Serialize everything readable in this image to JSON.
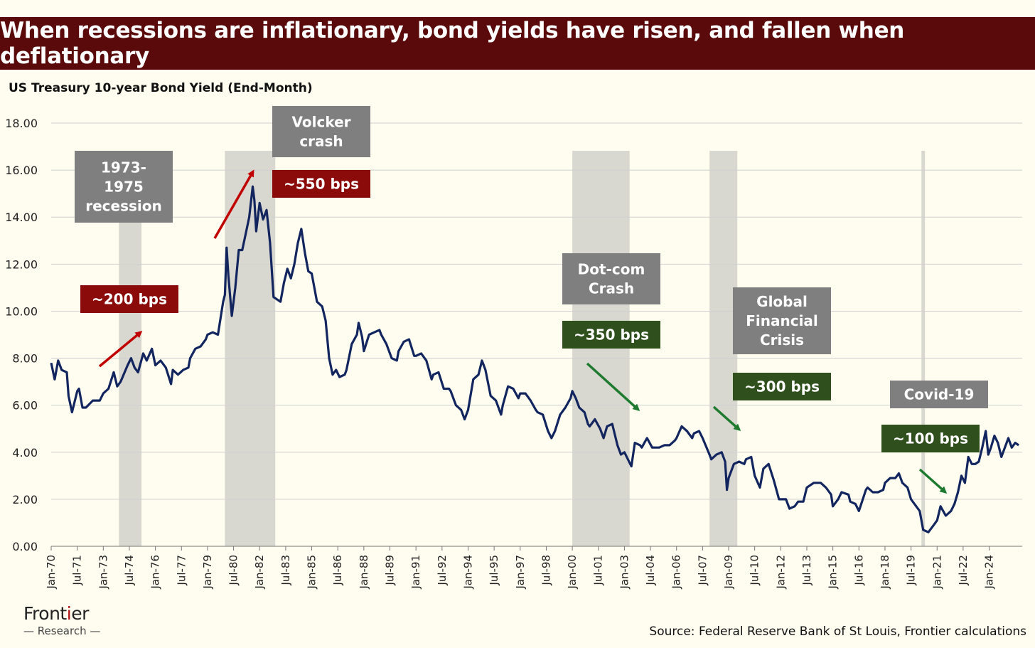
{
  "title": "When recessions are inflationary, bond yields have risen, and fallen when deflationary",
  "subtitle": "US Treasury 10-year Bond Yield (End-Month)",
  "source": "Source: Federal Reserve Bank of St Louis, Frontier calculations",
  "logo": {
    "main_pre": "Front",
    "main_dot": "i",
    "main_post": "er",
    "sub": "Research"
  },
  "colors": {
    "line": "#13255e",
    "recession": "#d9d8d0",
    "grey_box": "#7f7f7f",
    "red_box": "#8b0a0a",
    "green_box": "#2f4f1c",
    "red_arrow": "#c00000",
    "green_arrow": "#1e7a2e"
  },
  "chart_data": {
    "type": "line",
    "title": "US Treasury 10-year Bond Yield (End-Month)",
    "xlabel": "",
    "ylabel": "",
    "ylim": [
      0,
      18
    ],
    "yticks": [
      "0.00",
      "2.00",
      "4.00",
      "6.00",
      "8.00",
      "10.00",
      "12.00",
      "14.00",
      "16.00",
      "18.00"
    ],
    "xlim": [
      1970.0,
      2025.9
    ],
    "xticks": [
      "Jan-70",
      "Jul-71",
      "Jan-73",
      "Jul-74",
      "Jan-76",
      "Jul-77",
      "Jan-79",
      "Jul-80",
      "Jan-82",
      "Jul-83",
      "Jan-85",
      "Jul-86",
      "Jan-88",
      "Jul-89",
      "Jan-91",
      "Jul-92",
      "Jan-94",
      "Jul-95",
      "Jan-97",
      "Jul-98",
      "Jan-00",
      "Jul-01",
      "Jan-03",
      "Jul-04",
      "Jan-06",
      "Jul-07",
      "Jan-09",
      "Jul-10",
      "Jan-12",
      "Jul-13",
      "Jan-15",
      "Jul-16",
      "Jan-18",
      "Jul-19",
      "Jan-21",
      "Jul-22",
      "Jan-24"
    ],
    "series": [
      {
        "name": "US Treasury 10-year Bond Yield",
        "points": [
          [
            1970.0,
            7.8
          ],
          [
            1970.2,
            7.1
          ],
          [
            1970.4,
            7.9
          ],
          [
            1970.6,
            7.5
          ],
          [
            1970.9,
            7.4
          ],
          [
            1971.0,
            6.4
          ],
          [
            1971.2,
            5.7
          ],
          [
            1971.5,
            6.6
          ],
          [
            1971.6,
            6.7
          ],
          [
            1971.8,
            5.9
          ],
          [
            1972.0,
            5.9
          ],
          [
            1972.4,
            6.2
          ],
          [
            1972.8,
            6.2
          ],
          [
            1973.0,
            6.5
          ],
          [
            1973.3,
            6.7
          ],
          [
            1973.6,
            7.4
          ],
          [
            1973.8,
            6.8
          ],
          [
            1974.0,
            7.0
          ],
          [
            1974.4,
            7.7
          ],
          [
            1974.6,
            8.0
          ],
          [
            1974.8,
            7.6
          ],
          [
            1975.0,
            7.4
          ],
          [
            1975.3,
            8.2
          ],
          [
            1975.5,
            7.9
          ],
          [
            1975.8,
            8.4
          ],
          [
            1976.0,
            7.7
          ],
          [
            1976.3,
            7.9
          ],
          [
            1976.6,
            7.6
          ],
          [
            1976.9,
            6.9
          ],
          [
            1977.0,
            7.5
          ],
          [
            1977.3,
            7.3
          ],
          [
            1977.6,
            7.5
          ],
          [
            1977.9,
            7.6
          ],
          [
            1978.0,
            8.0
          ],
          [
            1978.3,
            8.4
          ],
          [
            1978.6,
            8.5
          ],
          [
            1978.9,
            8.8
          ],
          [
            1979.0,
            9.0
          ],
          [
            1979.3,
            9.1
          ],
          [
            1979.6,
            9.0
          ],
          [
            1979.9,
            10.4
          ],
          [
            1980.0,
            10.7
          ],
          [
            1980.1,
            12.7
          ],
          [
            1980.2,
            11.5
          ],
          [
            1980.4,
            9.8
          ],
          [
            1980.6,
            11.0
          ],
          [
            1980.8,
            12.6
          ],
          [
            1981.0,
            12.6
          ],
          [
            1981.2,
            13.3
          ],
          [
            1981.4,
            14.0
          ],
          [
            1981.6,
            15.3
          ],
          [
            1981.7,
            14.7
          ],
          [
            1981.8,
            13.4
          ],
          [
            1982.0,
            14.6
          ],
          [
            1982.2,
            13.9
          ],
          [
            1982.4,
            14.3
          ],
          [
            1982.6,
            12.9
          ],
          [
            1982.8,
            10.6
          ],
          [
            1983.0,
            10.5
          ],
          [
            1983.2,
            10.4
          ],
          [
            1983.4,
            11.2
          ],
          [
            1983.6,
            11.8
          ],
          [
            1983.8,
            11.4
          ],
          [
            1984.0,
            12.0
          ],
          [
            1984.2,
            12.9
          ],
          [
            1984.4,
            13.5
          ],
          [
            1984.6,
            12.5
          ],
          [
            1984.8,
            11.7
          ],
          [
            1985.0,
            11.6
          ],
          [
            1985.3,
            10.4
          ],
          [
            1985.6,
            10.2
          ],
          [
            1985.8,
            9.6
          ],
          [
            1986.0,
            8.0
          ],
          [
            1986.2,
            7.3
          ],
          [
            1986.4,
            7.5
          ],
          [
            1986.6,
            7.2
          ],
          [
            1986.9,
            7.3
          ],
          [
            1987.0,
            7.5
          ],
          [
            1987.3,
            8.6
          ],
          [
            1987.6,
            9.0
          ],
          [
            1987.7,
            9.5
          ],
          [
            1987.9,
            8.9
          ],
          [
            1988.0,
            8.3
          ],
          [
            1988.3,
            9.0
          ],
          [
            1988.6,
            9.1
          ],
          [
            1988.9,
            9.2
          ],
          [
            1989.0,
            9.0
          ],
          [
            1989.3,
            8.6
          ],
          [
            1989.6,
            8.0
          ],
          [
            1989.9,
            7.9
          ],
          [
            1990.0,
            8.3
          ],
          [
            1990.3,
            8.7
          ],
          [
            1990.6,
            8.8
          ],
          [
            1990.9,
            8.1
          ],
          [
            1991.0,
            8.1
          ],
          [
            1991.3,
            8.2
          ],
          [
            1991.6,
            7.9
          ],
          [
            1991.9,
            7.1
          ],
          [
            1992.0,
            7.3
          ],
          [
            1992.3,
            7.4
          ],
          [
            1992.6,
            6.7
          ],
          [
            1992.9,
            6.7
          ],
          [
            1993.0,
            6.6
          ],
          [
            1993.3,
            6.0
          ],
          [
            1993.6,
            5.8
          ],
          [
            1993.8,
            5.4
          ],
          [
            1994.0,
            5.8
          ],
          [
            1994.3,
            7.1
          ],
          [
            1994.6,
            7.3
          ],
          [
            1994.8,
            7.9
          ],
          [
            1995.0,
            7.5
          ],
          [
            1995.3,
            6.4
          ],
          [
            1995.6,
            6.2
          ],
          [
            1995.9,
            5.6
          ],
          [
            1996.0,
            6.0
          ],
          [
            1996.3,
            6.8
          ],
          [
            1996.6,
            6.7
          ],
          [
            1996.9,
            6.3
          ],
          [
            1997.0,
            6.5
          ],
          [
            1997.3,
            6.5
          ],
          [
            1997.6,
            6.2
          ],
          [
            1997.9,
            5.8
          ],
          [
            1998.0,
            5.7
          ],
          [
            1998.3,
            5.6
          ],
          [
            1998.6,
            4.9
          ],
          [
            1998.8,
            4.6
          ],
          [
            1999.0,
            4.9
          ],
          [
            1999.3,
            5.6
          ],
          [
            1999.6,
            5.9
          ],
          [
            1999.9,
            6.3
          ],
          [
            2000.0,
            6.6
          ],
          [
            2000.2,
            6.3
          ],
          [
            2000.4,
            5.9
          ],
          [
            2000.7,
            5.7
          ],
          [
            2000.9,
            5.2
          ],
          [
            2001.0,
            5.1
          ],
          [
            2001.3,
            5.4
          ],
          [
            2001.6,
            5.0
          ],
          [
            2001.8,
            4.6
          ],
          [
            2002.0,
            5.1
          ],
          [
            2002.3,
            5.2
          ],
          [
            2002.6,
            4.3
          ],
          [
            2002.8,
            3.9
          ],
          [
            2003.0,
            4.0
          ],
          [
            2003.4,
            3.4
          ],
          [
            2003.6,
            4.4
          ],
          [
            2003.9,
            4.3
          ],
          [
            2004.0,
            4.2
          ],
          [
            2004.3,
            4.6
          ],
          [
            2004.6,
            4.2
          ],
          [
            2004.9,
            4.2
          ],
          [
            2005.0,
            4.2
          ],
          [
            2005.3,
            4.3
          ],
          [
            2005.6,
            4.3
          ],
          [
            2005.9,
            4.5
          ],
          [
            2006.0,
            4.6
          ],
          [
            2006.3,
            5.1
          ],
          [
            2006.6,
            4.9
          ],
          [
            2006.9,
            4.6
          ],
          [
            2007.0,
            4.8
          ],
          [
            2007.3,
            4.9
          ],
          [
            2007.5,
            4.6
          ],
          [
            2007.9,
            3.9
          ],
          [
            2008.0,
            3.7
          ],
          [
            2008.3,
            3.9
          ],
          [
            2008.6,
            4.0
          ],
          [
            2008.8,
            3.6
          ],
          [
            2008.9,
            2.4
          ],
          [
            2009.0,
            2.9
          ],
          [
            2009.3,
            3.5
          ],
          [
            2009.6,
            3.6
          ],
          [
            2009.9,
            3.5
          ],
          [
            2010.0,
            3.7
          ],
          [
            2010.3,
            3.8
          ],
          [
            2010.5,
            3.0
          ],
          [
            2010.8,
            2.5
          ],
          [
            2011.0,
            3.3
          ],
          [
            2011.3,
            3.5
          ],
          [
            2011.6,
            2.8
          ],
          [
            2011.9,
            2.0
          ],
          [
            2012.0,
            2.0
          ],
          [
            2012.3,
            2.0
          ],
          [
            2012.5,
            1.6
          ],
          [
            2012.8,
            1.7
          ],
          [
            2013.0,
            1.9
          ],
          [
            2013.3,
            1.9
          ],
          [
            2013.5,
            2.5
          ],
          [
            2013.9,
            2.7
          ],
          [
            2014.0,
            2.7
          ],
          [
            2014.3,
            2.7
          ],
          [
            2014.6,
            2.5
          ],
          [
            2014.9,
            2.2
          ],
          [
            2015.0,
            1.7
          ],
          [
            2015.3,
            2.0
          ],
          [
            2015.5,
            2.3
          ],
          [
            2015.9,
            2.2
          ],
          [
            2016.0,
            1.9
          ],
          [
            2016.3,
            1.8
          ],
          [
            2016.5,
            1.5
          ],
          [
            2016.9,
            2.4
          ],
          [
            2017.0,
            2.5
          ],
          [
            2017.3,
            2.3
          ],
          [
            2017.6,
            2.3
          ],
          [
            2017.9,
            2.4
          ],
          [
            2018.0,
            2.7
          ],
          [
            2018.3,
            2.9
          ],
          [
            2018.6,
            2.9
          ],
          [
            2018.8,
            3.1
          ],
          [
            2019.0,
            2.7
          ],
          [
            2019.3,
            2.5
          ],
          [
            2019.5,
            2.0
          ],
          [
            2019.8,
            1.7
          ],
          [
            2020.0,
            1.5
          ],
          [
            2020.2,
            0.7
          ],
          [
            2020.5,
            0.6
          ],
          [
            2020.8,
            0.9
          ],
          [
            2021.0,
            1.1
          ],
          [
            2021.2,
            1.7
          ],
          [
            2021.5,
            1.3
          ],
          [
            2021.8,
            1.5
          ],
          [
            2022.0,
            1.8
          ],
          [
            2022.2,
            2.3
          ],
          [
            2022.4,
            3.0
          ],
          [
            2022.6,
            2.7
          ],
          [
            2022.8,
            3.8
          ],
          [
            2023.0,
            3.5
          ],
          [
            2023.2,
            3.5
          ],
          [
            2023.4,
            3.6
          ],
          [
            2023.6,
            4.2
          ],
          [
            2023.8,
            4.9
          ],
          [
            2023.95,
            3.9
          ],
          [
            2024.1,
            4.2
          ],
          [
            2024.3,
            4.7
          ],
          [
            2024.5,
            4.4
          ],
          [
            2024.7,
            3.8
          ],
          [
            2024.9,
            4.2
          ],
          [
            2025.1,
            4.6
          ],
          [
            2025.3,
            4.2
          ],
          [
            2025.5,
            4.4
          ],
          [
            2025.7,
            4.3
          ]
        ]
      }
    ],
    "recessions": [
      [
        1973.9,
        1975.2
      ],
      [
        1980.0,
        1980.6
      ],
      [
        1981.6,
        1982.9
      ],
      [
        2001.2,
        2001.9
      ],
      [
        2007.9,
        2009.5
      ],
      [
        2020.1,
        2020.3
      ]
    ],
    "shaded_bands": [
      [
        1973.9,
        1975.2
      ],
      [
        1980.0,
        1982.9
      ],
      [
        2000.0,
        2003.3
      ],
      [
        2007.9,
        2009.5
      ],
      [
        2020.1,
        2020.3
      ]
    ],
    "annotations": [
      {
        "id": "rec-1973",
        "label_lines": [
          "1973-",
          "1975",
          "recession"
        ],
        "kind": "grey"
      },
      {
        "id": "bps-200",
        "label_lines": [
          "~200 bps"
        ],
        "kind": "red"
      },
      {
        "id": "volcker",
        "label_lines": [
          "Volcker",
          "crash"
        ],
        "kind": "grey"
      },
      {
        "id": "bps-550",
        "label_lines": [
          "~550 bps"
        ],
        "kind": "red"
      },
      {
        "id": "dotcom",
        "label_lines": [
          "Dot-com",
          "Crash"
        ],
        "kind": "grey"
      },
      {
        "id": "bps-350",
        "label_lines": [
          "~350 bps"
        ],
        "kind": "green"
      },
      {
        "id": "gfc",
        "label_lines": [
          "Global",
          "Financial",
          "Crisis"
        ],
        "kind": "grey"
      },
      {
        "id": "bps-300",
        "label_lines": [
          "~300 bps"
        ],
        "kind": "green"
      },
      {
        "id": "covid",
        "label_lines": [
          "Covid-19"
        ],
        "kind": "grey"
      },
      {
        "id": "bps-100",
        "label_lines": [
          "~100 bps"
        ],
        "kind": "green"
      }
    ]
  }
}
